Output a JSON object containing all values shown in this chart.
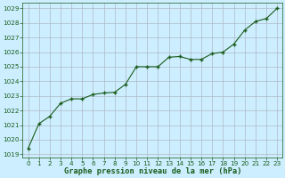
{
  "x": [
    0,
    1,
    2,
    3,
    4,
    5,
    6,
    7,
    8,
    9,
    10,
    11,
    12,
    13,
    14,
    15,
    16,
    17,
    18,
    19,
    20,
    21,
    22,
    23
  ],
  "y": [
    1019.4,
    1021.1,
    1021.6,
    1022.5,
    1022.8,
    1022.8,
    1023.1,
    1023.2,
    1023.25,
    1023.8,
    1025.0,
    1025.0,
    1025.0,
    1025.65,
    1025.7,
    1025.5,
    1025.5,
    1025.9,
    1026.0,
    1026.55,
    1027.5,
    1028.1,
    1028.3,
    1029.0
  ],
  "line_color": "#1a5c1a",
  "marker_color": "#1a5c1a",
  "bg_color": "#cceeff",
  "grid_color": "#b0b8c8",
  "ylabel_ticks": [
    1019,
    1020,
    1021,
    1022,
    1023,
    1024,
    1025,
    1026,
    1027,
    1028,
    1029
  ],
  "ylim": [
    1018.8,
    1029.4
  ],
  "xlim": [
    -0.5,
    23.5
  ],
  "xlabel": "Graphe pression niveau de la mer (hPa)",
  "tick_fontsize": 5.2,
  "label_fontsize": 6.2,
  "title_color": "#1a5c1a",
  "marker_size": 3.5,
  "linewidth": 0.8
}
